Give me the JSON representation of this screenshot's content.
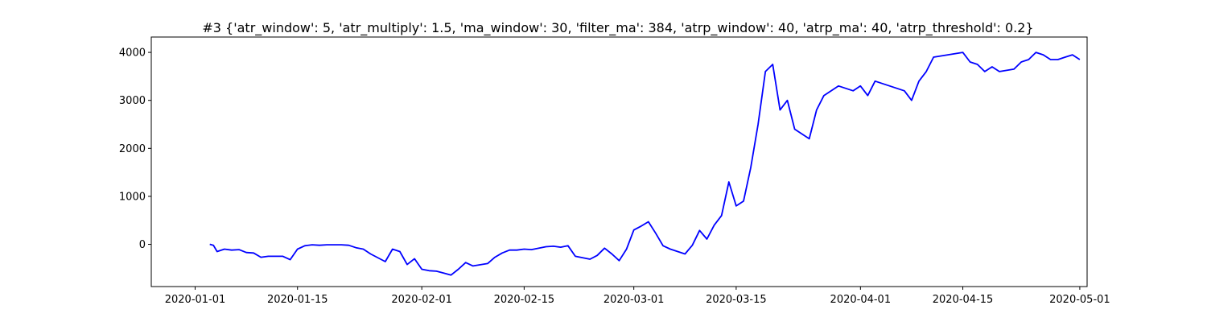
{
  "chart_data": {
    "type": "line",
    "title": "#3 {'atr_window': 5, 'atr_multiply': 1.5, 'ma_window': 30, 'filter_ma': 384, 'atrp_window': 40, 'atrp_ma': 40, 'atrp_threshold': 0.2}",
    "xlabel": "",
    "ylabel": "",
    "x_range": [
      "2019-12-26",
      "2020-05-02"
    ],
    "ylim": [
      -880,
      4320
    ],
    "grid": false,
    "x_ticks": [
      {
        "date": "2020-01-01",
        "label": "2020-01-01"
      },
      {
        "date": "2020-01-15",
        "label": "2020-01-15"
      },
      {
        "date": "2020-02-01",
        "label": "2020-02-01"
      },
      {
        "date": "2020-02-15",
        "label": "2020-02-15"
      },
      {
        "date": "2020-03-01",
        "label": "2020-03-01"
      },
      {
        "date": "2020-03-15",
        "label": "2020-03-15"
      },
      {
        "date": "2020-04-01",
        "label": "2020-04-01"
      },
      {
        "date": "2020-04-15",
        "label": "2020-04-15"
      },
      {
        "date": "2020-05-01",
        "label": "2020-05-01"
      }
    ],
    "y_ticks": [
      {
        "value": 0,
        "label": "0"
      },
      {
        "value": 1000,
        "label": "1000"
      },
      {
        "value": 2000,
        "label": "2000"
      },
      {
        "value": 3000,
        "label": "3000"
      },
      {
        "value": 4000,
        "label": "4000"
      }
    ],
    "series": [
      {
        "color": "#0000ff",
        "points": [
          [
            "2020-01-03",
            0
          ],
          [
            "2020-01-03 12:00",
            -20
          ],
          [
            "2020-01-04",
            -150
          ],
          [
            "2020-01-05",
            -100
          ],
          [
            "2020-01-06",
            -120
          ],
          [
            "2020-01-07",
            -110
          ],
          [
            "2020-01-08",
            -170
          ],
          [
            "2020-01-09",
            -180
          ],
          [
            "2020-01-10",
            -270
          ],
          [
            "2020-01-11",
            -250
          ],
          [
            "2020-01-13",
            -250
          ],
          [
            "2020-01-14",
            -320
          ],
          [
            "2020-01-15",
            -100
          ],
          [
            "2020-01-16",
            -30
          ],
          [
            "2020-01-17",
            -10
          ],
          [
            "2020-01-18",
            -20
          ],
          [
            "2020-01-19",
            -10
          ],
          [
            "2020-01-21",
            -10
          ],
          [
            "2020-01-22",
            -20
          ],
          [
            "2020-01-23",
            -70
          ],
          [
            "2020-01-24",
            -100
          ],
          [
            "2020-01-25",
            -200
          ],
          [
            "2020-01-27",
            -360
          ],
          [
            "2020-01-28",
            -100
          ],
          [
            "2020-01-29",
            -150
          ],
          [
            "2020-01-30",
            -420
          ],
          [
            "2020-01-31",
            -300
          ],
          [
            "2020-02-01",
            -520
          ],
          [
            "2020-02-02",
            -550
          ],
          [
            "2020-02-03",
            -560
          ],
          [
            "2020-02-04",
            -600
          ],
          [
            "2020-02-05",
            -640
          ],
          [
            "2020-02-06",
            -520
          ],
          [
            "2020-02-07",
            -380
          ],
          [
            "2020-02-08",
            -450
          ],
          [
            "2020-02-10",
            -400
          ],
          [
            "2020-02-11",
            -270
          ],
          [
            "2020-02-12",
            -180
          ],
          [
            "2020-02-13",
            -120
          ],
          [
            "2020-02-14",
            -120
          ],
          [
            "2020-02-15",
            -100
          ],
          [
            "2020-02-16",
            -110
          ],
          [
            "2020-02-18",
            -50
          ],
          [
            "2020-02-19",
            -40
          ],
          [
            "2020-02-20",
            -60
          ],
          [
            "2020-02-21",
            -30
          ],
          [
            "2020-02-22",
            -250
          ],
          [
            "2020-02-24",
            -310
          ],
          [
            "2020-02-25",
            -230
          ],
          [
            "2020-02-26",
            -80
          ],
          [
            "2020-02-27",
            -200
          ],
          [
            "2020-02-28",
            -340
          ],
          [
            "2020-02-29",
            -100
          ],
          [
            "2020-03-01",
            300
          ],
          [
            "2020-03-02",
            380
          ],
          [
            "2020-03-03",
            470
          ],
          [
            "2020-03-04",
            230
          ],
          [
            "2020-03-05",
            -30
          ],
          [
            "2020-03-06",
            -100
          ],
          [
            "2020-03-07",
            -150
          ],
          [
            "2020-03-08",
            -200
          ],
          [
            "2020-03-09",
            -20
          ],
          [
            "2020-03-10",
            290
          ],
          [
            "2020-03-11",
            110
          ],
          [
            "2020-03-12",
            400
          ],
          [
            "2020-03-13",
            600
          ],
          [
            "2020-03-14",
            1300
          ],
          [
            "2020-03-15",
            800
          ],
          [
            "2020-03-16",
            900
          ],
          [
            "2020-03-17",
            1600
          ],
          [
            "2020-03-18",
            2500
          ],
          [
            "2020-03-19",
            3600
          ],
          [
            "2020-03-20",
            3750
          ],
          [
            "2020-03-21",
            2800
          ],
          [
            "2020-03-22",
            3000
          ],
          [
            "2020-03-23",
            2400
          ],
          [
            "2020-03-25",
            2200
          ],
          [
            "2020-03-26",
            2800
          ],
          [
            "2020-03-27",
            3100
          ],
          [
            "2020-03-28",
            3200
          ],
          [
            "2020-03-29",
            3300
          ],
          [
            "2020-03-31",
            3200
          ],
          [
            "2020-04-01",
            3300
          ],
          [
            "2020-04-02",
            3100
          ],
          [
            "2020-04-03",
            3400
          ],
          [
            "2020-04-05",
            3300
          ],
          [
            "2020-04-07",
            3200
          ],
          [
            "2020-04-08",
            3000
          ],
          [
            "2020-04-09",
            3400
          ],
          [
            "2020-04-10",
            3600
          ],
          [
            "2020-04-11",
            3900
          ],
          [
            "2020-04-15",
            4000
          ],
          [
            "2020-04-16",
            3800
          ],
          [
            "2020-04-17",
            3750
          ],
          [
            "2020-04-18",
            3600
          ],
          [
            "2020-04-19",
            3700
          ],
          [
            "2020-04-20",
            3600
          ],
          [
            "2020-04-22",
            3650
          ],
          [
            "2020-04-23",
            3800
          ],
          [
            "2020-04-24",
            3850
          ],
          [
            "2020-04-25",
            4000
          ],
          [
            "2020-04-26",
            3950
          ],
          [
            "2020-04-27",
            3850
          ],
          [
            "2020-04-28",
            3850
          ],
          [
            "2020-04-29",
            3900
          ],
          [
            "2020-04-30",
            3950
          ],
          [
            "2020-05-01",
            3850
          ]
        ]
      }
    ]
  }
}
